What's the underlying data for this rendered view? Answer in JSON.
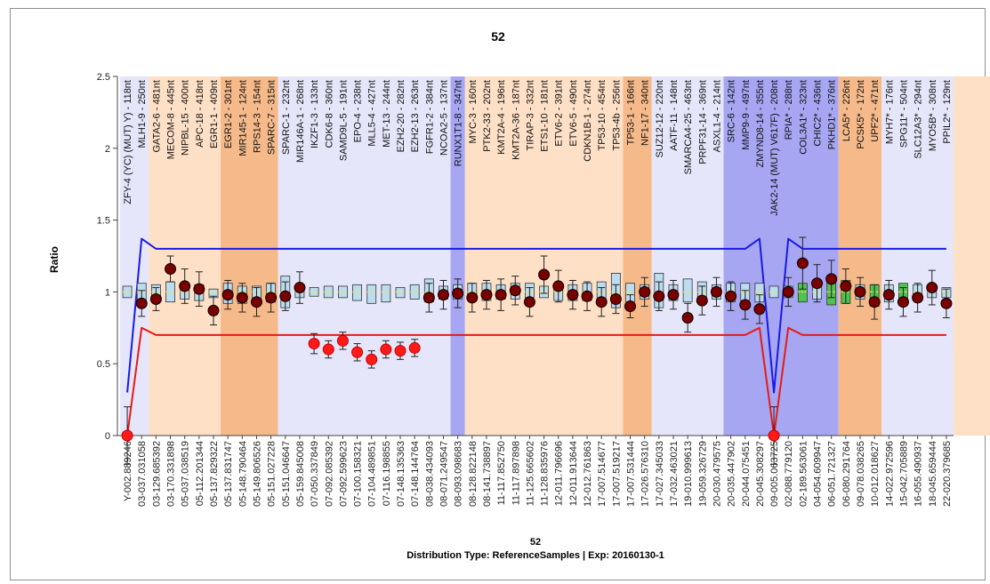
{
  "chart_data": {
    "type": "box",
    "title": "52",
    "subtitle": "Distribution Type: ReferenceSamples | Exp: 20160130-1",
    "xlabel": "52",
    "ylabel": "Ratio",
    "ylim": [
      0,
      2.5
    ],
    "yticks": [
      "0",
      "0.5",
      "1",
      "1.5",
      "2",
      "2.5"
    ],
    "upper_threshold": 1.3,
    "lower_threshold": 0.7,
    "colors": {
      "upper_line": "#1a1ae6",
      "lower_line": "#e61a1a",
      "marker_normal": "#7a0000",
      "marker_low": "#ff1a1a",
      "band_light": "#e6e6fa",
      "band_orange": "#f5b98a",
      "band_lightorange": "#fde0c6",
      "band_blue": "#a6a6f2",
      "band_gray": "#cfcfcf",
      "box_blue": "#bcdcf0",
      "box_green": "#4fc24f"
    },
    "band_bounds": [
      0,
      2,
      7,
      11,
      23,
      24,
      35,
      37,
      42,
      50,
      53,
      58,
      62,
      63,
      64,
      69,
      72,
      86
    ],
    "band_colors": [
      "#e6e6fa",
      "#fde0c6",
      "#f5b98a",
      "#e6e6fa",
      "#a6a6f2",
      "#fde0c6",
      "#f5b98a",
      "#e6e6fa",
      "#a6a6f2",
      "#f5b98a",
      "#e6e6fa",
      "#fde0c6",
      "#f5b98a",
      "#e6e6fa",
      "#a6a6f2",
      "#f5b98a",
      "#e6e6fa",
      "#cfcfcf"
    ],
    "probes": [
      "ZFY-4 (YC) (MUT) Y) - 118nt",
      "MLH1-9 - 250nt",
      "GATA2-6 - 481nt",
      "MECOM-8 - 445nt",
      "NIPBL-15 - 400nt",
      "APC-18 - 418nt",
      "EGR1-1 - 409nt",
      "EGR1-2 - 301nt",
      "MIR145-1 - 124nt",
      "RPS14-3 - 154nt",
      "SPARC-7 - 315nt",
      "SPARC-1 - 232nt",
      "MIR146A-1 - 268nt",
      "IKZF1-3 - 133nt",
      "CDK6-8 - 360nt",
      "SAMD9L-5 - 191nt",
      "EPO-4 - 238nt",
      "MLL5-4 - 427nt",
      "MET-13 - 244nt",
      "EZH2-20 - 282nt",
      "EZH2-13 - 263nt",
      "FGFR1-2 - 384nt",
      "NCOA2-5 - 137nt",
      "RUNX1T1-8 - 347nt",
      "MYC-3 - 160nt",
      "PTK2-33 - 202nt",
      "KMT2A-4 - 196nt",
      "KMT2A-36 - 187nt",
      "TIRAP-3 - 332nt",
      "ETS1-10 - 181nt",
      "ETV6-2 - 391nt",
      "ETV6-5 - 490nt",
      "CDKN1B-1 - 274nt",
      "TP53-10 - 454nt",
      "TP53-4b - 256nt",
      "TP53-1 - 166nt",
      "NF1-17 - 340nt",
      "SUZ12-12 - 220nt",
      "AATF-11 - 148nt",
      "SMARCA4-25 - 463nt",
      "PRPF31-14 - 369nt",
      "ASXL1-4 - 214nt",
      "SRC-6 - 142nt",
      "MMP9-9 - 497nt",
      "ZMYND8-14 - 355nt",
      "JAK2-14 (MUT) V617F) - 208nt",
      "RPIA* - 288nt",
      "COL3A1* - 323nt",
      "CHIC2* - 436nt",
      "PKHD1* - 376nt",
      "LCA5* - 226nt",
      "PCSK5* - 172nt",
      "UPF2* - 471nt",
      "MYH7* - 176nt",
      "SPG11* - 504nt",
      "SLC12A3* - 294nt",
      "MYO5B* - 308nt",
      "PPIL2* - 129nt"
    ],
    "categories": [
      "Y-002.889246",
      "03-037.031058",
      "03-129.685392",
      "03-170.331898",
      "05-037.038519",
      "05-112.201344",
      "05-137.829322",
      "05-137.831747",
      "05-148.790464",
      "05-149.806526",
      "05-151.027228",
      "05-151.046647",
      "05-159.845008",
      "07-050.337849",
      "07-092.085392",
      "07-092.599623",
      "07-100.158321",
      "07-104.489851",
      "07-116.198855",
      "07-148.135363",
      "07-148.144764",
      "08-038.434093",
      "08-071.249547",
      "08-093.098683",
      "08-128.822148",
      "08-141.738897",
      "11-117.852750",
      "11-117.897898",
      "11-125.665602",
      "11-128.835976",
      "12-011.796696",
      "12-011.913644",
      "12-012.761863",
      "17-007.514677",
      "17-007.519217",
      "17-007.531444",
      "17-026.576310",
      "17-027.345033",
      "17-032.463021",
      "19-010.999613",
      "19-059.326729",
      "20-030.479575",
      "20-035.447902",
      "20-044.075451",
      "20-045.308297",
      "09-005.063725",
      "02-088.779120",
      "02-189.563061",
      "04-054.609947",
      "06-051.721327",
      "06-080.291764",
      "09-078.038265",
      "10-012.018627",
      "14-022.972596",
      "15-042.705889",
      "16-055.490937",
      "18-045.659444",
      "22-020.379685"
    ],
    "values": [
      0,
      0.92,
      0.95,
      1.16,
      1.04,
      1.02,
      0.87,
      0.98,
      0.96,
      0.93,
      0.96,
      0.97,
      1.03,
      0.64,
      0.6,
      0.66,
      0.58,
      0.53,
      0.6,
      0.59,
      0.61,
      0.96,
      0.98,
      0.99,
      0.96,
      0.98,
      0.98,
      1.01,
      0.93,
      1.12,
      1.04,
      0.98,
      0.97,
      0.93,
      0.95,
      0.9,
      1.0,
      0.97,
      0.98,
      0.82,
      0.94,
      1.0,
      0.97,
      0.91,
      0.88,
      0,
      1.0,
      1.2,
      1.06,
      1.09,
      1.04,
      1.0,
      0.93,
      0.98,
      0.93,
      0.96,
      1.03,
      0.92
    ],
    "errors": [
      0.2,
      0.09,
      0.08,
      0.09,
      0.12,
      0.12,
      0.1,
      0.1,
      0.1,
      0.1,
      0.1,
      0.1,
      0.11,
      0.07,
      0.06,
      0.06,
      0.06,
      0.06,
      0.06,
      0.06,
      0.06,
      0.1,
      0.1,
      0.1,
      0.1,
      0.1,
      0.11,
      0.1,
      0.1,
      0.13,
      0.11,
      0.1,
      0.1,
      0.1,
      0.1,
      0.08,
      0.1,
      0.1,
      0.1,
      0.1,
      0.1,
      0.1,
      0.1,
      0.1,
      0.1,
      0.2,
      0.1,
      0.18,
      0.13,
      0.13,
      0.12,
      0.1,
      0.12,
      0.1,
      0.1,
      0.1,
      0.12,
      0.1
    ],
    "box_ranges": [
      [
        0.96,
        1.04
      ],
      [
        0.94,
        1.06
      ],
      [
        0.94,
        1.05
      ],
      [
        0.93,
        1.07
      ],
      [
        0.95,
        1.06
      ],
      [
        0.94,
        1.05
      ],
      [
        0.96,
        1.02
      ],
      [
        0.92,
        1.06
      ],
      [
        0.92,
        1.04
      ],
      [
        0.94,
        1.04
      ],
      [
        0.93,
        1.06
      ],
      [
        0.89,
        1.11
      ],
      [
        0.96,
        1.05
      ],
      [
        0.97,
        1.03
      ],
      [
        0.96,
        1.04
      ],
      [
        0.96,
        1.04
      ],
      [
        0.94,
        1.05
      ],
      [
        0.92,
        1.05
      ],
      [
        0.93,
        1.05
      ],
      [
        0.96,
        1.03
      ],
      [
        0.95,
        1.05
      ],
      [
        0.93,
        1.09
      ],
      [
        0.95,
        1.04
      ],
      [
        0.95,
        1.05
      ],
      [
        0.94,
        1.06
      ],
      [
        0.94,
        1.06
      ],
      [
        0.95,
        1.05
      ],
      [
        0.95,
        1.06
      ],
      [
        0.96,
        1.06
      ],
      [
        0.96,
        1.04
      ],
      [
        0.94,
        1.06
      ],
      [
        0.94,
        1.05
      ],
      [
        0.94,
        1.06
      ],
      [
        0.93,
        1.07
      ],
      [
        0.89,
        1.13
      ],
      [
        0.93,
        1.06
      ],
      [
        0.95,
        1.05
      ],
      [
        0.89,
        1.13
      ],
      [
        0.94,
        1.05
      ],
      [
        0.93,
        1.09
      ],
      [
        0.93,
        1.07
      ],
      [
        0.95,
        1.05
      ],
      [
        0.93,
        1.06
      ],
      [
        0.94,
        1.06
      ],
      [
        0.93,
        1.06
      ],
      [
        0.96,
        1.04
      ],
      [
        0.96,
        1.04
      ],
      [
        0.93,
        1.06
      ],
      [
        0.95,
        1.05
      ],
      [
        0.91,
        1.08
      ],
      [
        0.92,
        1.08
      ],
      [
        0.95,
        1.05
      ],
      [
        0.9,
        1.05
      ],
      [
        0.93,
        1.05
      ],
      [
        0.93,
        1.06
      ],
      [
        0.94,
        1.05
      ],
      [
        0.96,
        1.03
      ],
      [
        0.96,
        1.03
      ]
    ],
    "box_colors": [
      "#bcdcf0",
      "#bcdcf0",
      "#bcdcf0",
      "#bcdcf0",
      "#bcdcf0",
      "#bcdcf0",
      "#bcdcf0",
      "#bcdcf0",
      "#bcdcf0",
      "#bcdcf0",
      "#bcdcf0",
      "#bcdcf0",
      "#bcdcf0",
      "#bcdcf0",
      "#bcdcf0",
      "#bcdcf0",
      "#bcdcf0",
      "#bcdcf0",
      "#bcdcf0",
      "#bcdcf0",
      "#bcdcf0",
      "#bcdcf0",
      "#bcdcf0",
      "#bcdcf0",
      "#bcdcf0",
      "#bcdcf0",
      "#bcdcf0",
      "#bcdcf0",
      "#bcdcf0",
      "#bcdcf0",
      "#bcdcf0",
      "#bcdcf0",
      "#bcdcf0",
      "#bcdcf0",
      "#bcdcf0",
      "#bcdcf0",
      "#bcdcf0",
      "#bcdcf0",
      "#bcdcf0",
      "#bcdcf0",
      "#bcdcf0",
      "#bcdcf0",
      "#bcdcf0",
      "#bcdcf0",
      "#bcdcf0",
      "#bcdcf0",
      "#bcdcf0",
      "#4fc24f",
      "#bcdcf0",
      "#4fc24f",
      "#4fc24f",
      "#bcdcf0",
      "#4fc24f",
      "#bcdcf0",
      "#4fc24f",
      "#bcdcf0",
      "#bcdcf0",
      "#bcdcf0"
    ],
    "threshold_dips": [
      0,
      45
    ],
    "grid": false,
    "legend": "none"
  }
}
